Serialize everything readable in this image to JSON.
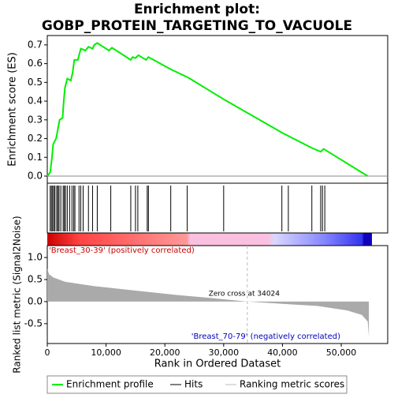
{
  "chart_data": [
    {
      "type": "line",
      "title": [
        "Enrichment plot:",
        "GOBP_PROTEIN_TARGETING_TO_VACUOLE"
      ],
      "y_label": "Enrichment score (ES)",
      "color": "#00ee00",
      "x": [
        0,
        500,
        800,
        1000,
        1500,
        1800,
        2100,
        2600,
        2800,
        3000,
        3400,
        4000,
        4300,
        4600,
        5200,
        5700,
        6500,
        7000,
        7700,
        8000,
        8500,
        10500,
        11000,
        14200,
        14500,
        15000,
        15500,
        16800,
        17200,
        21000,
        24000,
        30000,
        40000,
        45000,
        46500,
        47000,
        54500
      ],
      "values": [
        0,
        0.02,
        0.1,
        0.17,
        0.2,
        0.25,
        0.3,
        0.31,
        0.4,
        0.47,
        0.52,
        0.51,
        0.55,
        0.62,
        0.62,
        0.68,
        0.67,
        0.69,
        0.68,
        0.7,
        0.71,
        0.67,
        0.685,
        0.62,
        0.635,
        0.63,
        0.645,
        0.62,
        0.635,
        0.57,
        0.525,
        0.41,
        0.23,
        0.15,
        0.13,
        0.145,
        0
      ],
      "xlim": [
        0,
        57900
      ],
      "ylim": [
        -0.038,
        0.75
      ],
      "yticks": [
        {
          "value": 0,
          "label": "0.0"
        },
        0.1,
        0.2,
        0.3,
        0.4,
        0.5,
        0.6,
        0.7
      ]
    },
    {
      "type": "hits",
      "color": "#000000",
      "x": [
        500,
        700,
        900,
        1100,
        1300,
        1600,
        1800,
        2000,
        2300,
        2700,
        2900,
        3100,
        3400,
        3800,
        4200,
        4500,
        4700,
        5400,
        5700,
        6100,
        7000,
        7700,
        8500,
        10800,
        14200,
        15000,
        15400,
        17000,
        17200,
        21000,
        23800,
        30000,
        39900,
        41000,
        45000,
        46500,
        46800,
        47200
      ],
      "xlim": [
        0,
        57900
      ]
    },
    {
      "type": "area",
      "y_label": "Ranked list metric (Signal2Noise)",
      "x_label": "Rank in Ordered Dataset",
      "color": "#aaaaaa",
      "x": [
        0,
        300,
        1000,
        3000,
        8000,
        15000,
        22000,
        28000,
        34024,
        40000,
        46000,
        51000,
        53500,
        54500,
        54700
      ],
      "values": [
        0.75,
        0.62,
        0.55,
        0.45,
        0.35,
        0.25,
        0.15,
        0.08,
        0.0,
        -0.05,
        -0.1,
        -0.2,
        -0.3,
        -0.45,
        -0.8
      ],
      "xlim": [
        0,
        57900
      ],
      "ylim": [
        -0.95,
        1.27
      ],
      "yticks": [
        {
          "value": -0.5,
          "label": "-0.5"
        },
        {
          "value": 0,
          "label": "0.0"
        },
        0.5,
        {
          "value": 1,
          "label": "1.0"
        }
      ],
      "xticks": [
        0,
        {
          "value": 10000,
          "label": "10,000"
        },
        {
          "value": 20000,
          "label": "20,000"
        },
        {
          "value": 30000,
          "label": "30,000"
        },
        {
          "value": 40000,
          "label": "40,000"
        },
        {
          "value": 50000,
          "label": "50,000"
        }
      ],
      "zero_cross": 34024,
      "zero_cross_label": "Zero cross at 34024",
      "pos_label": "'Breast_30-39' (positively correlated)",
      "neg_label": "'Breast_70-79' (negatively correlated)",
      "legend": [
        {
          "name": "Enrichment profile",
          "color": "#00ee00"
        },
        {
          "name": "Hits",
          "color": "#000000"
        },
        {
          "name": "Ranking metric scores",
          "color": "#bbbbbb"
        }
      ]
    }
  ]
}
